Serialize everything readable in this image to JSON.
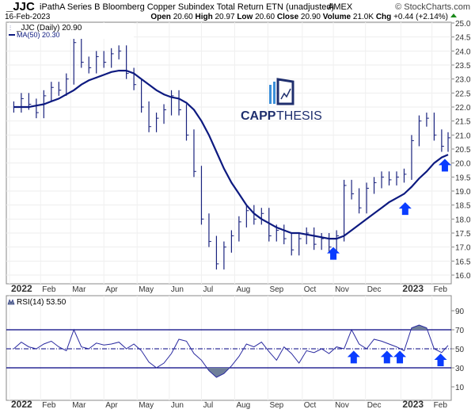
{
  "header": {
    "symbol": "_JJC",
    "name": "iPathA Series B Bloomberg Copper Subindex Total Return ETN (unadjusted)",
    "exchange": "AMEX",
    "copyright": "© StockCharts.com",
    "date": "16-Feb-2023",
    "open_label": "Open",
    "open": "20.60",
    "high_label": "High",
    "high": "20.97",
    "low_label": "Low",
    "low": "20.60",
    "close_label": "Close",
    "close": "20.90",
    "volume_label": "Volume",
    "volume": "21.0K",
    "chg_label": "Chg",
    "chg": "+0.44 (+2.14%)",
    "up_icon": "triangle-up"
  },
  "legend": {
    "price": "_JJC (Daily) 20.90",
    "ma": "MA(50) 20.30",
    "rsi": "RSI(14) 53.50"
  },
  "logo": {
    "text_bold": "CAPP",
    "text_light": "THESIS"
  },
  "colors": {
    "price": "#1a237e",
    "ma": "#0d1a80",
    "rsi": "#2a2aa0",
    "rsi_fill": "#6f7f9a",
    "arrow": "#0a3cff",
    "band": "#000080"
  },
  "chart_data": [
    {
      "type": "ohlc",
      "yaxis_side": "right",
      "ylim": [
        16.0,
        25.0
      ],
      "yticks": [
        "25.0",
        "24.5",
        "24.0",
        "23.5",
        "23.0",
        "22.5",
        "22.0",
        "21.5",
        "21.0",
        "20.5",
        "20.0",
        "19.5",
        "19.0",
        "18.5",
        "18.0",
        "17.5",
        "17.0",
        "16.5",
        "16.0"
      ],
      "xticks": [
        {
          "label": "2022",
          "date": "2022-01-03",
          "bold": true
        },
        {
          "label": "Feb",
          "date": "2022-02-01"
        },
        {
          "label": "Mar",
          "date": "2022-03-01"
        },
        {
          "label": "Apr",
          "date": "2022-04-01"
        },
        {
          "label": "May",
          "date": "2022-05-02"
        },
        {
          "label": "Jun",
          "date": "2022-06-01"
        },
        {
          "label": "Jul",
          "date": "2022-07-01"
        },
        {
          "label": "Aug",
          "date": "2022-08-01"
        },
        {
          "label": "Sep",
          "date": "2022-09-01"
        },
        {
          "label": "Oct",
          "date": "2022-10-03"
        },
        {
          "label": "Nov",
          "date": "2022-11-01"
        },
        {
          "label": "Dec",
          "date": "2022-12-01"
        },
        {
          "label": "2023",
          "date": "2023-01-03",
          "bold": true
        },
        {
          "label": "Feb",
          "date": "2023-02-01"
        }
      ],
      "dates": [
        "2022-01-07",
        "2022-01-14",
        "2022-01-21",
        "2022-01-28",
        "2022-02-04",
        "2022-02-11",
        "2022-02-18",
        "2022-02-25",
        "2022-03-04",
        "2022-03-11",
        "2022-03-18",
        "2022-03-25",
        "2022-04-01",
        "2022-04-08",
        "2022-04-15",
        "2022-04-22",
        "2022-04-29",
        "2022-05-06",
        "2022-05-13",
        "2022-05-20",
        "2022-05-27",
        "2022-06-03",
        "2022-06-10",
        "2022-06-17",
        "2022-06-24",
        "2022-07-01",
        "2022-07-08",
        "2022-07-15",
        "2022-07-22",
        "2022-07-29",
        "2022-08-05",
        "2022-08-12",
        "2022-08-19",
        "2022-08-26",
        "2022-09-02",
        "2022-09-09",
        "2022-09-16",
        "2022-09-23",
        "2022-09-30",
        "2022-10-07",
        "2022-10-14",
        "2022-10-21",
        "2022-10-28",
        "2022-11-04",
        "2022-11-11",
        "2022-11-18",
        "2022-11-25",
        "2022-12-02",
        "2022-12-09",
        "2022-12-16",
        "2022-12-23",
        "2022-12-30",
        "2023-01-06",
        "2023-01-13",
        "2023-01-20",
        "2023-01-27",
        "2023-02-03",
        "2023-02-10",
        "2023-02-16"
      ],
      "close": [
        22.0,
        22.3,
        22.1,
        21.8,
        22.4,
        22.7,
        22.6,
        23.0,
        24.3,
        23.6,
        23.4,
        23.8,
        23.6,
        23.9,
        24.0,
        23.2,
        22.8,
        22.0,
        21.3,
        21.6,
        21.9,
        22.4,
        21.9,
        21.0,
        19.7,
        18.0,
        17.2,
        16.4,
        17.0,
        17.4,
        17.9,
        18.3,
        18.0,
        18.2,
        17.4,
        17.6,
        17.3,
        16.9,
        17.3,
        17.5,
        17.1,
        17.3,
        17.0,
        17.4,
        19.2,
        18.9,
        18.4,
        19.1,
        19.3,
        19.5,
        19.4,
        19.5,
        19.6,
        20.8,
        21.5,
        21.6,
        21.0,
        20.6,
        20.9
      ],
      "ma50": [
        22.0,
        22.0,
        22.0,
        22.05,
        22.1,
        22.2,
        22.3,
        22.45,
        22.6,
        22.8,
        22.95,
        23.05,
        23.15,
        23.25,
        23.3,
        23.3,
        23.2,
        23.0,
        22.8,
        22.6,
        22.45,
        22.35,
        22.3,
        22.15,
        21.9,
        21.5,
        21.0,
        20.4,
        19.8,
        19.3,
        18.9,
        18.5,
        18.2,
        18.0,
        17.85,
        17.7,
        17.6,
        17.5,
        17.5,
        17.45,
        17.4,
        17.35,
        17.3,
        17.3,
        17.4,
        17.6,
        17.8,
        18.0,
        18.2,
        18.4,
        18.6,
        18.75,
        18.9,
        19.15,
        19.45,
        19.7,
        20.0,
        20.2,
        20.3
      ],
      "annotations": [
        {
          "type": "arrow-up",
          "date": "2022-11-01",
          "value": 17.0
        },
        {
          "type": "arrow-up",
          "date": "2023-01-07",
          "value": 18.6
        },
        {
          "type": "arrow-up",
          "date": "2023-02-13",
          "value": 20.15
        }
      ]
    },
    {
      "type": "line",
      "name": "RSI(14)",
      "ylim": [
        0,
        100
      ],
      "yticks": [
        "90",
        "70",
        "50",
        "30",
        "10"
      ],
      "bands": [
        70,
        50,
        30
      ],
      "dates_ref": "same as price",
      "values": [
        50,
        57,
        52,
        50,
        55,
        58,
        52,
        48,
        70,
        52,
        50,
        56,
        54,
        55,
        57,
        50,
        55,
        48,
        36,
        30,
        35,
        45,
        60,
        58,
        45,
        38,
        27,
        20,
        24,
        32,
        42,
        55,
        52,
        57,
        47,
        38,
        52,
        45,
        35,
        48,
        46,
        50,
        45,
        52,
        50,
        70,
        55,
        50,
        60,
        58,
        55,
        52,
        48,
        72,
        75,
        72,
        50,
        46,
        53.5
      ],
      "annotations": [
        {
          "type": "arrow-up",
          "date": "2022-11-20",
          "value": 48
        },
        {
          "type": "arrow-up",
          "date": "2022-12-21",
          "value": 48
        },
        {
          "type": "arrow-up",
          "date": "2023-01-02",
          "value": 48
        },
        {
          "type": "arrow-up",
          "date": "2023-02-09",
          "value": 45
        }
      ]
    }
  ]
}
